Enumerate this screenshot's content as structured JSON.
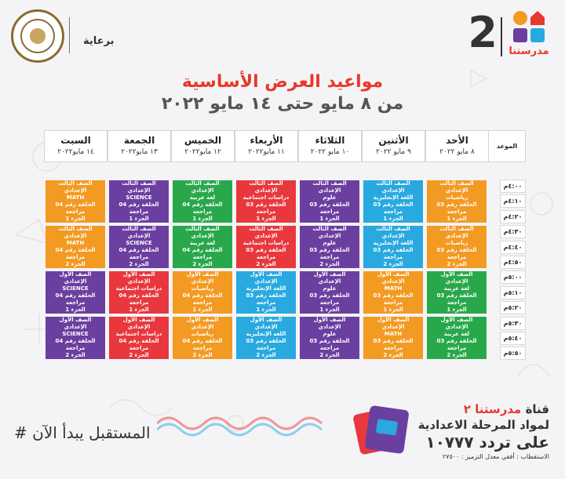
{
  "header": {
    "logo_name": "مدرستنا",
    "channel_number": "2",
    "sponsor_label": "برعاية",
    "title": "مواعيد العرض الأساسية",
    "subtitle": "من ٨ مايو حتى ١٤ مايو ٢٠٢٢"
  },
  "colors": {
    "orange": "#f39a22",
    "blue": "#28a9e0",
    "purple": "#6b3fa0",
    "red": "#e8383d",
    "green": "#29a84b"
  },
  "table": {
    "time_header": "الموعد",
    "days": [
      {
        "name": "الأحد",
        "date": "٨ مايو ٢٠٢٢"
      },
      {
        "name": "الأثنين",
        "date": "٩ مايو ٢٠٢٢"
      },
      {
        "name": "الثلاثاء",
        "date": "١٠ مايو ٢٠٢٢"
      },
      {
        "name": "الأربعاء",
        "date": "١١ مايو٢٠٢٢"
      },
      {
        "name": "الخميس",
        "date": "١٢ مايو٢٠٢٢"
      },
      {
        "name": "الجمعة",
        "date": "١٣ مايو٢٠٢٢"
      },
      {
        "name": "السبت",
        "date": "١٤ مايو٢٠٢٢"
      }
    ],
    "times": [
      "٤:٠٠م",
      "٤:١٠م",
      "٤:٢٠م",
      "٤:٣٠م",
      "٤:٤٠م",
      "٤:٥٠م",
      "٥:٠٠م",
      "٥:١٠م",
      "٥:٢٠م",
      "٥:٣٠م",
      "٥:٤٠م",
      "٥:٥٠م"
    ],
    "rows": [
      [
        {
          "color": "orange",
          "lines": [
            "الصف الثالث الإعدادي",
            "رياضيات",
            "الحلقة رقم 03 مراجعة",
            "الجزء 1"
          ]
        },
        {
          "color": "blue",
          "lines": [
            "الصف الثالث الإعدادي",
            "اللغة الإنجليزية",
            "الحلقة رقم 03 مراجعة",
            "الجزء 1"
          ]
        },
        {
          "color": "purple",
          "lines": [
            "الصف الثالث الإعدادي",
            "علوم",
            "الحلقة رقم 03 مراجعة",
            "الجزء 1"
          ]
        },
        {
          "color": "red",
          "lines": [
            "الصف الثالث الإعدادي",
            "دراسات اجتماعية",
            "الحلقة رقم 03 مراجعة",
            "الجزء 1"
          ]
        },
        {
          "color": "green",
          "lines": [
            "الصف الثالث الإعدادي",
            "لغة عربية",
            "الحلقة رقم 04 مراجعة",
            "الجزء 1"
          ]
        },
        {
          "color": "purple",
          "lines": [
            "الصف الثالث الإعدادي",
            "SCIENCE",
            "الحلقة رقم 04 مراجعة",
            "الجزء 1"
          ]
        },
        {
          "color": "orange",
          "lines": [
            "الصف الثالث الإعدادي",
            "MATH",
            "الحلقة رقم 04 مراجعة",
            "الجزء 1"
          ]
        }
      ],
      [
        {
          "color": "orange",
          "lines": [
            "الصف الثالث الإعدادي",
            "رياضيات",
            "الحلقة رقم 03 مراجعة",
            "الجزء 2"
          ]
        },
        {
          "color": "blue",
          "lines": [
            "الصف الثالث الإعدادي",
            "اللغة الإنجليزية",
            "الحلقة رقم 03 مراجعة",
            "الجزء 2"
          ]
        },
        {
          "color": "purple",
          "lines": [
            "الصف الثالث الإعدادي",
            "علوم",
            "الحلقة رقم 03 مراجعة",
            "الجزء 2"
          ]
        },
        {
          "color": "red",
          "lines": [
            "الصف الثالث الإعدادي",
            "دراسات اجتماعية",
            "الحلقة رقم 03 مراجعة",
            "الجزء 2"
          ]
        },
        {
          "color": "green",
          "lines": [
            "الصف الثالث الإعدادي",
            "لغة عربية",
            "الحلقة رقم 04 مراجعة",
            "الجزء 2"
          ]
        },
        {
          "color": "purple",
          "lines": [
            "الصف الثالث الإعدادي",
            "SCIENCE",
            "الحلقة رقم 04 مراجعة",
            "الجزء 2"
          ]
        },
        {
          "color": "orange",
          "lines": [
            "الصف الثالث الإعدادي",
            "MATH",
            "الحلقة رقم 04 مراجعة",
            "الجزء 2"
          ]
        }
      ],
      [
        {
          "color": "green",
          "lines": [
            "الصف الأول الإعدادي",
            "لغة عربية",
            "الحلقة رقم 03 مراجعة",
            "الجزء 1"
          ]
        },
        {
          "color": "orange",
          "lines": [
            "الصف الأول الإعدادي",
            "MATH",
            "الحلقة رقم 03 مراجعة",
            "الجزء 1"
          ]
        },
        {
          "color": "purple",
          "lines": [
            "الصف الأول الإعدادي",
            "علوم",
            "الحلقة رقم 03 مراجعة",
            "الجزء 1"
          ]
        },
        {
          "color": "blue",
          "lines": [
            "الصف الأول الإعدادي",
            "اللغة الإنجليزية",
            "الحلقة رقم 03 مراجعة",
            "الجزء 1"
          ]
        },
        {
          "color": "orange",
          "lines": [
            "الصف الأول الإعدادي",
            "رياضيات",
            "الحلقة رقم 04 مراجعة",
            "الجزء 1"
          ]
        },
        {
          "color": "red",
          "lines": [
            "الصف الأول الإعدادي",
            "دراسات اجتماعية",
            "الحلقة رقم 04 مراجعة",
            "الجزء 1"
          ]
        },
        {
          "color": "purple",
          "lines": [
            "الصف الأول الإعدادي",
            "SCIENCE",
            "الحلقة رقم 04 مراجعة",
            "الجزء 1"
          ]
        }
      ],
      [
        {
          "color": "green",
          "lines": [
            "الصف الأول الإعدادي",
            "لغة عربية",
            "الحلقة رقم 03 مراجعة",
            "الجزء 2"
          ]
        },
        {
          "color": "orange",
          "lines": [
            "الصف الأول الإعدادي",
            "MATH",
            "الحلقة رقم 03 مراجعة",
            "الجزء 2"
          ]
        },
        {
          "color": "purple",
          "lines": [
            "الصف الأول الإعدادي",
            "علوم",
            "الحلقة رقم 03 مراجعة",
            "الجزء 2"
          ]
        },
        {
          "color": "blue",
          "lines": [
            "الصف الأول الإعدادي",
            "اللغة الإنجليزية",
            "الحلقة رقم 03 مراجعة",
            "الجزء 2"
          ]
        },
        {
          "color": "orange",
          "lines": [
            "الصف الأول الإعدادي",
            "رياضيات",
            "الحلقة رقم 04 مراجعة",
            "الجزء 2"
          ]
        },
        {
          "color": "red",
          "lines": [
            "الصف الأول الإعدادي",
            "دراسات اجتماعية",
            "الحلقة رقم 04 مراجعة",
            "الجزء 2"
          ]
        },
        {
          "color": "purple",
          "lines": [
            "الصف الأول الإعدادي",
            "SCIENCE",
            "الحلقة رقم 04 مراجعة",
            "الجزء 2"
          ]
        }
      ]
    ]
  },
  "footer": {
    "hashtag": "# المستقبل يبدأ الآن",
    "channel_line_prefix": "قناة",
    "channel_line_name": "مدرستنا ٢",
    "channel_line2": "لمواد المرحلة الاعدادية",
    "frequency": "على تردد ١٠٧٧٧",
    "reception": "الاستقطاب : أفقي معدل الترميز : ٢٧٥٠٠"
  }
}
